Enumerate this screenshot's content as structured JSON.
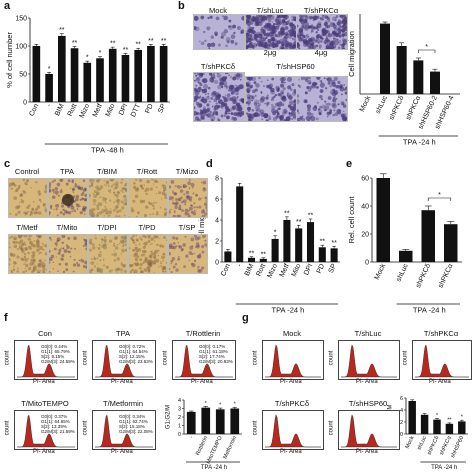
{
  "colors": {
    "bar": "#111111",
    "flow_fill": "#b7281e",
    "flow_line": "#222222",
    "purple_dark": "#4b3c7a",
    "purple_light": "#b8b3d6",
    "micro_bg": "#d8b77a"
  },
  "panels": {
    "a": {
      "letter": "a"
    },
    "b": {
      "letter": "b",
      "images": [
        {
          "title": "Mock"
        },
        {
          "title": "T/shLuc"
        },
        {
          "title": "T/shPKCα"
        },
        {
          "title": "T/shPKCδ"
        },
        {
          "title": "T/shHSP60"
        }
      ],
      "sublabels": [
        "2μg",
        "4μg"
      ]
    },
    "c": {
      "letter": "c",
      "images": [
        "Control",
        "TPA",
        "T/BIM",
        "T/Rott",
        "T/Mizo",
        "T/Metf",
        "T/Mito",
        "T/DPI",
        "T/PD",
        "T/SP"
      ]
    },
    "d": {
      "letter": "d"
    },
    "e": {
      "letter": "e"
    },
    "f": {
      "letter": "f",
      "plots": [
        {
          "title": "Con",
          "stats": "G0[0]: 0.44%\nG1[1]: 65.79%\nS[2]: 9.15%\nG2/M[3]: 24.59%"
        },
        {
          "title": "TPA",
          "stats": "G0[0]: 0.72%\nG1[1]: 64.54%\nS[2]: 12.15%\nG2/M[3]: 23.53%"
        },
        {
          "title": "T/Rottlerin",
          "stats": "G0[0]: 0.17%\nG1[1]: 61.18%\nS[2]: 17.74%\nG2/M[3]: 20.93%"
        },
        {
          "title": "T/MitoTEMPO",
          "stats": "G0[0]: 0.37%\nG1[1]: 64.65%\nS[2]: 13.39%\nG2/M[3]: 21.59%"
        },
        {
          "title": "T/Metformin",
          "stats": "G0[0]: 0.34%\nG1[1]: 62.74%\nS[2]: 15.18%\nG2/M[3]: 22.08%"
        }
      ],
      "xlabel": "PI- Area",
      "ylabel": "count"
    },
    "g": {
      "letter": "g",
      "plots": [
        {
          "title": "Mock"
        },
        {
          "title": "T/shLuc"
        },
        {
          "title": "T/shPKCα"
        },
        {
          "title": "T/shPKCδ"
        },
        {
          "title": "T/shHSP60"
        }
      ],
      "xlabel": "PI- Area",
      "ylabel": "count"
    }
  },
  "chart_data": [
    {
      "id": "a",
      "type": "bar",
      "ylabel": "% of cell number",
      "xlabel": "TPA -48 h",
      "categories": [
        "Con",
        "-",
        "BIM",
        "Rott",
        "Mizo",
        "Metf",
        "Mito",
        "DPI",
        "DTT",
        "PD",
        "SP"
      ],
      "values": [
        100,
        50,
        118,
        96,
        70,
        78,
        95,
        84,
        93,
        100,
        100
      ],
      "errors": [
        3,
        3,
        4,
        3,
        3,
        3,
        3,
        3,
        3,
        3,
        3
      ],
      "marks": [
        "",
        "*",
        "**",
        "**",
        "*",
        "*",
        "**",
        "**",
        "**",
        "**",
        "**"
      ],
      "ylim": [
        0,
        150
      ],
      "yticks": [
        0,
        50,
        100,
        150
      ]
    },
    {
      "id": "b",
      "type": "bar",
      "ylabel": "Cell migration",
      "xlabel": "TPA -24 h",
      "categories": [
        "Mock",
        "shLuc",
        "shPKCδ",
        "shPKCα",
        "shHSP60-2",
        "shHSP60-4"
      ],
      "values": [
        0,
        88,
        60,
        42,
        28,
        0
      ],
      "errors": [
        0,
        2,
        4,
        3,
        3,
        0
      ],
      "marks": [
        "",
        "",
        "",
        "",
        "",
        ""
      ],
      "bracket": {
        "from": 3,
        "to": 4,
        "mark": "*"
      },
      "ylim": [
        0,
        100
      ],
      "yticks": []
    },
    {
      "id": "d",
      "type": "bar",
      "ylabel": "Cell migration",
      "xlabel": "TPA -24 h",
      "categories": [
        "Con",
        "-",
        "BIM",
        "Rott",
        "Mizo",
        "Metf",
        "Mito",
        "DPI",
        "PD",
        "SP"
      ],
      "values": [
        1,
        7.2,
        0.4,
        0.3,
        2.2,
        4.0,
        3.2,
        3.8,
        1.4,
        1.3
      ],
      "errors": [
        0.2,
        0.3,
        0.1,
        0.1,
        0.3,
        0.3,
        0.3,
        0.3,
        0.2,
        0.2
      ],
      "marks": [
        "",
        "",
        "**",
        "**",
        "*",
        "**",
        "**",
        "**",
        "**",
        "**"
      ],
      "ylim": [
        0,
        8
      ],
      "yticks": [
        0,
        2,
        4,
        6,
        8
      ]
    },
    {
      "id": "e",
      "type": "bar",
      "ylabel": "Rel. cell count",
      "xlabel": "TPA -24 h",
      "categories": [
        "Mock",
        "shLuc",
        "shPKCδ",
        "shPKCα"
      ],
      "values": [
        60,
        8,
        37,
        27
      ],
      "errors": [
        3,
        1,
        3,
        2
      ],
      "marks": [
        "",
        "",
        "",
        ""
      ],
      "bracket": {
        "from": 2,
        "to": 3,
        "mark": "*"
      },
      "ylim": [
        0,
        60
      ],
      "yticks": [
        0,
        20,
        40,
        60
      ]
    },
    {
      "id": "f",
      "type": "bar",
      "ylabel": "G1:G2/M",
      "xlabel": "TPA -24 h",
      "categories": [
        "-",
        "Rottlerin",
        "MitoTEMPO",
        "Metformin"
      ],
      "values": [
        2.6,
        3.1,
        2.9,
        3.0
      ],
      "errors": [
        0.1,
        0.15,
        0.15,
        0.15
      ],
      "marks": [
        "",
        "*",
        "*",
        "*"
      ],
      "ylim": [
        0,
        4
      ],
      "yticks": [
        0,
        1,
        2,
        3,
        4
      ]
    },
    {
      "id": "g",
      "type": "bar",
      "ylabel": "G1:G2M",
      "xlabel": "TPA -24 h",
      "categories": [
        "Mock",
        "shLuc",
        "shPKCδ",
        "shPKCα",
        "shHSP60"
      ],
      "values": [
        5.5,
        3.2,
        2.4,
        1.7,
        2.1
      ],
      "errors": [
        0.2,
        0.2,
        0.2,
        0.15,
        0.2
      ],
      "marks": [
        "",
        "",
        "*",
        "**",
        "*"
      ],
      "ylim": [
        0,
        6
      ],
      "yticks": [
        0,
        2,
        4,
        6
      ]
    }
  ]
}
